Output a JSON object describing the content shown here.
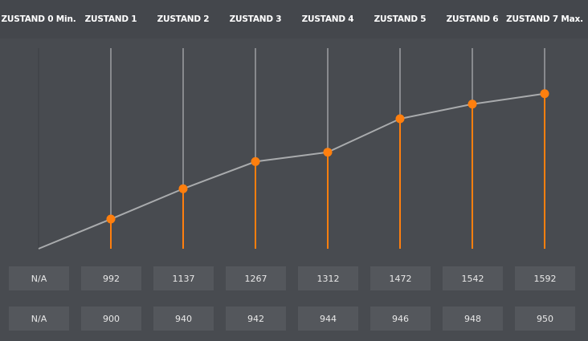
{
  "header": {
    "columns": [
      "ZUSTAND 0 Min.",
      "ZUSTAND 1",
      "ZUSTAND 2",
      "ZUSTAND 3",
      "ZUSTAND 4",
      "ZUSTAND 5",
      "ZUSTAND 6",
      "ZUSTAND 7 Max."
    ]
  },
  "rows": {
    "row1": [
      "N/A",
      "992",
      "1137",
      "1267",
      "1312",
      "1472",
      "1542",
      "1592"
    ],
    "row2": [
      "N/A",
      "900",
      "940",
      "942",
      "944",
      "946",
      "948",
      "950"
    ]
  },
  "chart_data": {
    "type": "line",
    "categories": [
      "ZUSTAND 0 Min.",
      "ZUSTAND 1",
      "ZUSTAND 2",
      "ZUSTAND 3",
      "ZUSTAND 4",
      "ZUSTAND 5",
      "ZUSTAND 6",
      "ZUSTAND 7 Max."
    ],
    "values": [
      null,
      992,
      1137,
      1267,
      1312,
      1472,
      1542,
      1592
    ],
    "ylim": [
      850,
      1810
    ],
    "grid": false
  },
  "colors": {
    "accent": "#ff7f0e",
    "line": "#a9abad",
    "background": "#484b50",
    "header_bg": "#44474c",
    "cell_bg": "#54575c"
  }
}
